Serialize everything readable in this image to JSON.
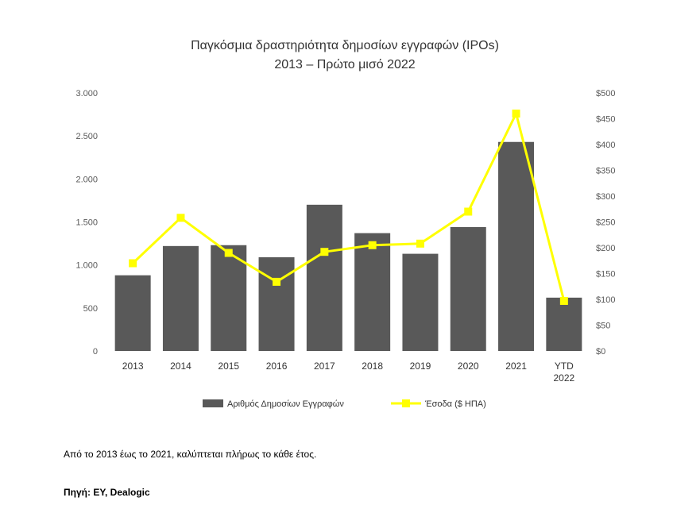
{
  "chart_data": {
    "type": "bar",
    "title": "Παγκόσμια δραστηριότητα δημοσίων εγγραφών (IPOs)",
    "subtitle": "2013 – Πρώτο μισό 2022",
    "categories": [
      "2013",
      "2014",
      "2015",
      "2016",
      "2017",
      "2018",
      "2019",
      "2020",
      "2021",
      "YTD 2022"
    ],
    "series": [
      {
        "name": "Αριθμός Δημοσίων Εγγραφών",
        "type": "bar",
        "axis": "left",
        "color": "#595959",
        "values": [
          880,
          1220,
          1230,
          1090,
          1700,
          1370,
          1130,
          1440,
          2430,
          620
        ]
      },
      {
        "name": "Έσοδα ($ ΗΠΑ)",
        "type": "line",
        "axis": "right",
        "color": "#FFFF00",
        "values": [
          170,
          258,
          190,
          134,
          192,
          205,
          208,
          270,
          460,
          97
        ]
      }
    ],
    "y_left": {
      "range": [
        0,
        3000
      ],
      "ticks": [
        0,
        500,
        1000,
        1500,
        2000,
        2500,
        3000
      ],
      "tick_labels": [
        "0",
        "500",
        "1.000",
        "1.500",
        "2.000",
        "2.500",
        "3.000"
      ]
    },
    "y_right": {
      "range": [
        0,
        500
      ],
      "ticks": [
        0,
        50,
        100,
        150,
        200,
        250,
        300,
        350,
        400,
        450,
        500
      ],
      "tick_labels": [
        "$0",
        "$50",
        "$100",
        "$150",
        "$200",
        "$250",
        "$300",
        "$350",
        "$400",
        "$450",
        "$500"
      ]
    },
    "grid": false,
    "legend_position": "bottom"
  },
  "footer": {
    "note": "Από το 2013 έως το 2021, καλύπτεται πλήρως το κάθε έτος.",
    "source": "Πηγή: EY, Dealogic"
  }
}
